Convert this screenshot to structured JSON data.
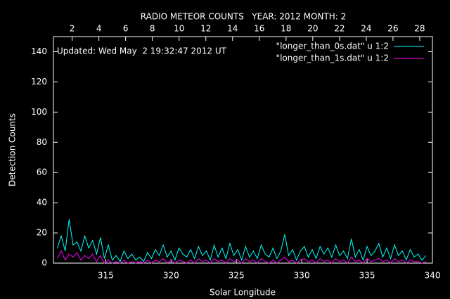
{
  "chart_data": {
    "type": "line",
    "title": "RADIO METEOR COUNTS   YEAR: 2012 MONTH: 2",
    "annotation": "Updated: Wed May  2 19:32:47 2012 UT",
    "x_label": "Solar Longitude",
    "y_label": "Detection Counts",
    "xlim": [
      311,
      340
    ],
    "xticks": [
      315,
      320,
      325,
      330,
      335,
      340
    ],
    "x2lim": [
      0.6,
      28.95
    ],
    "x2ticks": [
      2,
      4,
      6,
      8,
      10,
      12,
      14,
      16,
      18,
      20,
      22,
      24,
      26,
      28
    ],
    "ylim": [
      0,
      150
    ],
    "yticks": [
      0,
      20,
      40,
      60,
      80,
      100,
      120,
      140
    ],
    "legend": "top-right",
    "x": [
      311.3,
      311.6,
      311.9,
      312.2,
      312.5,
      312.8,
      313.1,
      313.4,
      313.7,
      314.0,
      314.3,
      314.6,
      314.9,
      315.2,
      315.5,
      315.8,
      316.1,
      316.4,
      316.7,
      317.0,
      317.3,
      317.6,
      317.9,
      318.2,
      318.5,
      318.8,
      319.1,
      319.4,
      319.7,
      320.0,
      320.3,
      320.6,
      320.9,
      321.2,
      321.5,
      321.8,
      322.1,
      322.4,
      322.7,
      323.0,
      323.3,
      323.6,
      323.9,
      324.2,
      324.5,
      324.8,
      325.1,
      325.4,
      325.7,
      326.0,
      326.3,
      326.6,
      326.9,
      327.2,
      327.5,
      327.8,
      328.1,
      328.4,
      328.7,
      329.0,
      329.3,
      329.6,
      329.9,
      330.2,
      330.5,
      330.8,
      331.1,
      331.4,
      331.7,
      332.0,
      332.3,
      332.6,
      332.9,
      333.2,
      333.5,
      333.8,
      334.1,
      334.4,
      334.7,
      335.0,
      335.3,
      335.6,
      335.9,
      336.2,
      336.5,
      336.8,
      337.1,
      337.4,
      337.7,
      338.0,
      338.3,
      338.6,
      338.9,
      339.2,
      339.5
    ],
    "series": [
      {
        "name": "\"longer_than_0s.dat\" u 1:2",
        "color": "#00ffff",
        "values": [
          10,
          18,
          8,
          29,
          12,
          14,
          8,
          18,
          10,
          15,
          6,
          17,
          3,
          12,
          2,
          5,
          1,
          8,
          3,
          6,
          2,
          4,
          1,
          7,
          3,
          9,
          5,
          12,
          4,
          8,
          2,
          10,
          6,
          4,
          9,
          3,
          11,
          5,
          8,
          2,
          12,
          4,
          10,
          3,
          13,
          5,
          9,
          2,
          11,
          4,
          8,
          3,
          12,
          6,
          4,
          10,
          3,
          8,
          19,
          5,
          9,
          2,
          8,
          11,
          4,
          9,
          3,
          11,
          6,
          10,
          4,
          12,
          5,
          8,
          3,
          16,
          4,
          9,
          2,
          11,
          5,
          8,
          13,
          4,
          10,
          3,
          12,
          5,
          8,
          2,
          9,
          4,
          6,
          2,
          5
        ]
      },
      {
        "name": "\"longer_than_1s.dat\" u 1:2",
        "color": "#ff00ff",
        "values": [
          3,
          8,
          2,
          6,
          4,
          7,
          2,
          5,
          3,
          6,
          1,
          5,
          0,
          2,
          0,
          1,
          0,
          2,
          0,
          1,
          0,
          1,
          0,
          2,
          0,
          2,
          1,
          3,
          0,
          2,
          0,
          2,
          1,
          0,
          2,
          0,
          3,
          1,
          2,
          0,
          3,
          1,
          2,
          0,
          3,
          1,
          2,
          0,
          3,
          1,
          2,
          0,
          3,
          1,
          0,
          2,
          0,
          2,
          4,
          1,
          2,
          0,
          2,
          3,
          1,
          2,
          0,
          3,
          1,
          2,
          0,
          3,
          1,
          2,
          0,
          4,
          1,
          2,
          0,
          3,
          1,
          2,
          3,
          1,
          2,
          0,
          3,
          1,
          2,
          0,
          2,
          1,
          1,
          0,
          1
        ]
      }
    ]
  }
}
